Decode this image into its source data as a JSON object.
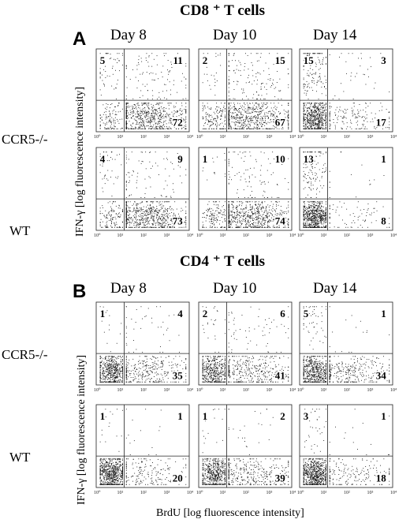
{
  "panel_a": {
    "letter": "A",
    "title": "CD8 ⁺ T cells",
    "days": [
      "Day 8",
      "Day 10",
      "Day 14"
    ],
    "rows": [
      "CCR5-/-",
      "WT"
    ],
    "ylabel": "IFN-γ [log fluorescence intensity]"
  },
  "panel_b": {
    "letter": "B",
    "title": "CD4 ⁺ T cells",
    "days": [
      "Day 8",
      "Day 10",
      "Day 14"
    ],
    "rows": [
      "CCR5-/-",
      "WT"
    ],
    "ylabel": "IFN-γ [log fluorescence intensity]"
  },
  "xlabel": "BrdU [log fluorescence intensity]",
  "chart_data": [
    {
      "type": "scatter",
      "panel": "A",
      "row": "CCR5-/-",
      "day": "Day 8",
      "quadrant_percent": {
        "upper_left": 5,
        "upper_right": 11,
        "lower_right": 72
      }
    },
    {
      "type": "scatter",
      "panel": "A",
      "row": "CCR5-/-",
      "day": "Day 10",
      "quadrant_percent": {
        "upper_left": 2,
        "upper_right": 15,
        "lower_right": 67
      }
    },
    {
      "type": "scatter",
      "panel": "A",
      "row": "CCR5-/-",
      "day": "Day 14",
      "quadrant_percent": {
        "upper_left": 15,
        "upper_right": 3,
        "lower_right": 17
      }
    },
    {
      "type": "scatter",
      "panel": "A",
      "row": "WT",
      "day": "Day 8",
      "quadrant_percent": {
        "upper_left": 4,
        "upper_right": 9,
        "lower_right": 73
      }
    },
    {
      "type": "scatter",
      "panel": "A",
      "row": "WT",
      "day": "Day 10",
      "quadrant_percent": {
        "upper_left": 1,
        "upper_right": 10,
        "lower_right": 74
      }
    },
    {
      "type": "scatter",
      "panel": "A",
      "row": "WT",
      "day": "Day 14",
      "quadrant_percent": {
        "upper_left": 13,
        "upper_right": 1,
        "lower_right": 8
      }
    },
    {
      "type": "scatter",
      "panel": "B",
      "row": "CCR5-/-",
      "day": "Day 8",
      "quadrant_percent": {
        "upper_left": 1,
        "upper_right": 4,
        "lower_right": 35
      }
    },
    {
      "type": "scatter",
      "panel": "B",
      "row": "CCR5-/-",
      "day": "Day 10",
      "quadrant_percent": {
        "upper_left": 2,
        "upper_right": 6,
        "lower_right": 41
      }
    },
    {
      "type": "scatter",
      "panel": "B",
      "row": "CCR5-/-",
      "day": "Day 14",
      "quadrant_percent": {
        "upper_left": 5,
        "upper_right": 1,
        "lower_right": 34
      }
    },
    {
      "type": "scatter",
      "panel": "B",
      "row": "WT",
      "day": "Day 8",
      "quadrant_percent": {
        "upper_left": 1,
        "upper_right": 1,
        "lower_right": 20
      }
    },
    {
      "type": "scatter",
      "panel": "B",
      "row": "WT",
      "day": "Day 10",
      "quadrant_percent": {
        "upper_left": 1,
        "upper_right": 2,
        "lower_right": 39
      }
    },
    {
      "type": "scatter",
      "panel": "B",
      "row": "WT",
      "day": "Day 14",
      "quadrant_percent": {
        "upper_left": 3,
        "upper_right": 1,
        "lower_right": 18
      }
    }
  ],
  "axis_ticks": [
    "10⁰",
    "10¹",
    "10²",
    "10³",
    "10⁴"
  ]
}
